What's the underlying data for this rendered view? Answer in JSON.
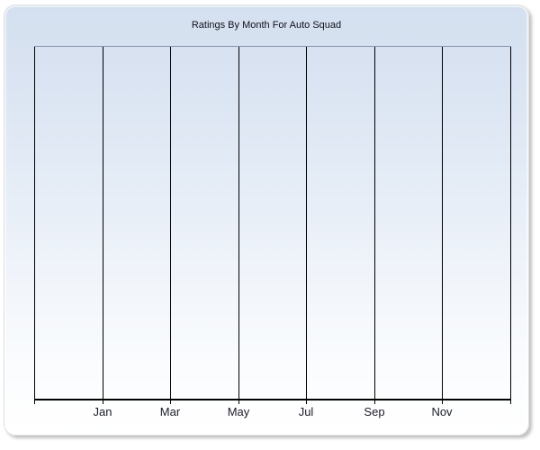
{
  "window": {
    "title": "Ratings By Month For Auto Squad"
  },
  "chart_data": {
    "type": "line",
    "title": "Ratings By Month For Auto Squad",
    "x_tick_labels": [
      "Jan",
      "Mar",
      "May",
      "Jul",
      "Sep",
      "Nov"
    ],
    "x_gridline_count": 8,
    "y_axis_labels": [],
    "series": [],
    "plot_is_empty": true,
    "grid": "vertical-only",
    "legend_position": "none",
    "colors": {
      "panel_gradient_top": "#d4e0f0",
      "panel_gradient_bottom": "#ffffff",
      "gridline": "#000000",
      "axis": "#000000",
      "plot_top_border": "#8494ac",
      "title_text": "#10101a",
      "label_text": "#1c1c26"
    }
  }
}
